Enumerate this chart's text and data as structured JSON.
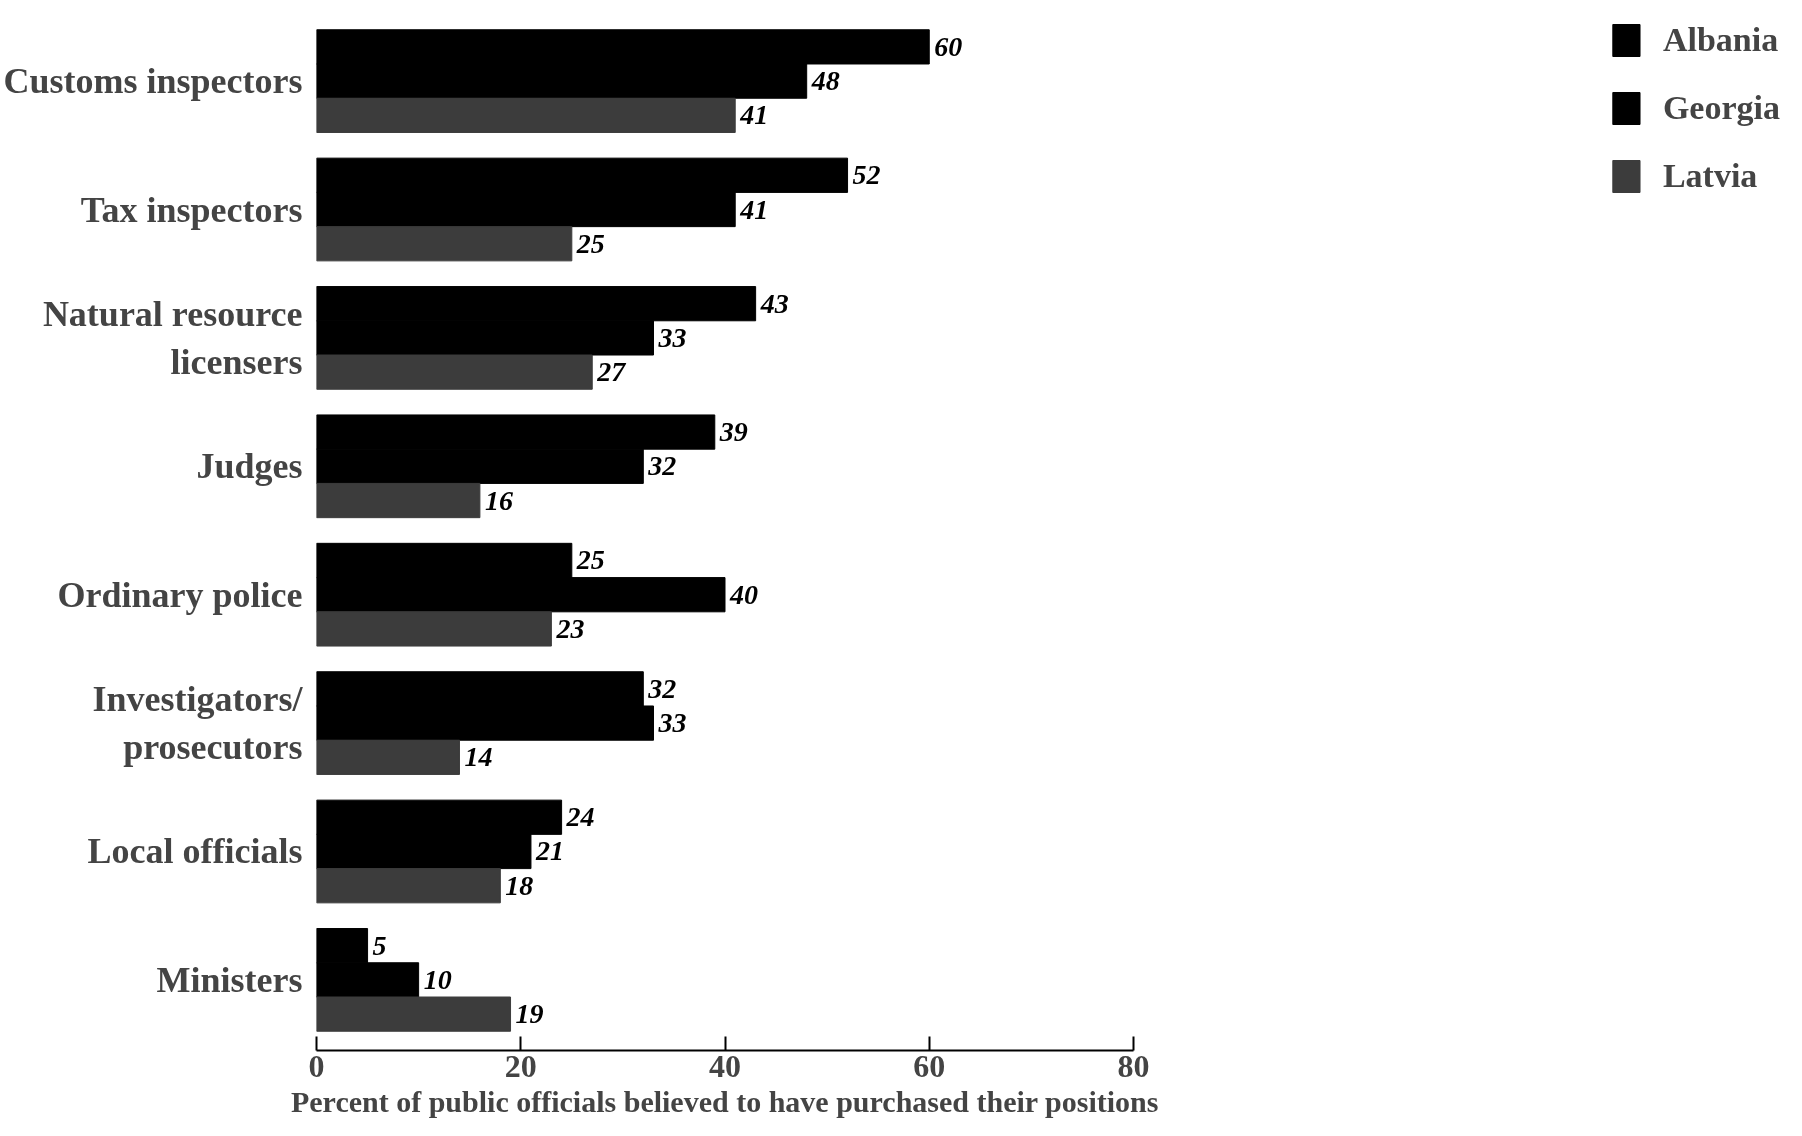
{
  "chart_data": {
    "type": "bar",
    "orientation": "horizontal",
    "xlabel": "Percent of public officials believed to have purchased their positions",
    "categories": [
      "Customs inspectors",
      "Tax inspectors",
      "Natural resource\nlicensers",
      "Judges",
      "Ordinary police",
      "Investigators/\nprosecutors",
      "Local officials",
      "Ministers"
    ],
    "series": [
      {
        "name": "Albania",
        "color": "#000000",
        "values": [
          60,
          52,
          43,
          39,
          25,
          32,
          24,
          5
        ]
      },
      {
        "name": "Georgia",
        "color": "#000000",
        "values": [
          48,
          41,
          33,
          32,
          40,
          33,
          21,
          10
        ]
      },
      {
        "name": "Latvia",
        "color": "#3c3c3c",
        "values": [
          41,
          25,
          27,
          16,
          23,
          14,
          18,
          19
        ]
      }
    ],
    "xlim": [
      0,
      80
    ],
    "xticks": [
      0,
      20,
      40,
      60,
      80
    ],
    "data_labels": true,
    "grid": false,
    "legend": "right"
  }
}
